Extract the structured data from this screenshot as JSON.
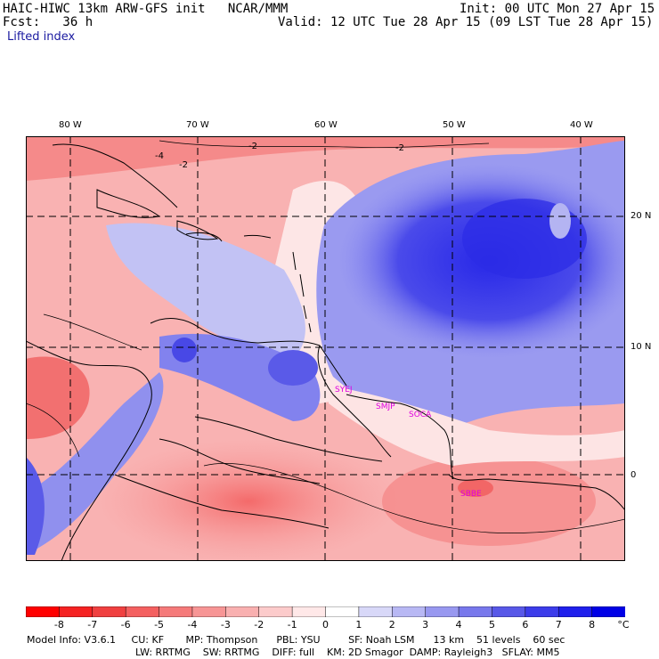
{
  "header": {
    "left1": "HAIC-HIWC 13km ARW-GFS init   NCAR/MMM",
    "right1": "Init: 00 UTC Mon 27 Apr 15",
    "left2": "Fcst:   36 h",
    "right2": "Valid: 12 UTC Tue 28 Apr 15 (09 LST Tue 28 Apr 15)",
    "field": "Lifted index"
  },
  "axes": {
    "lon_labels": [
      "80 W",
      "70 W",
      "60 W",
      "50 W",
      "40 W"
    ],
    "lat_labels": [
      "20 N",
      "10 N",
      "0"
    ]
  },
  "stations": [
    "SYEJ",
    "SMJP",
    "SOCA",
    "SBBE"
  ],
  "contour_labels": [
    "-2",
    "-4",
    "-2",
    "-2"
  ],
  "colorbar": {
    "ticks": [
      "-8",
      "-7",
      "-6",
      "-5",
      "-4",
      "-3",
      "-2",
      "-1",
      "0",
      "1",
      "2",
      "3",
      "4",
      "5",
      "6",
      "7",
      "8"
    ],
    "unit": "°C",
    "colors": [
      "#ff0000",
      "#f52222",
      "#f04040",
      "#f46060",
      "#f57a7a",
      "#f79595",
      "#f9b0b0",
      "#fccbcb",
      "#ffe8e8",
      "#ffffff",
      "#d8d8f8",
      "#b8b8f4",
      "#9898f0",
      "#7878ec",
      "#5858e8",
      "#3c3cea",
      "#2020ec",
      "#0000e6"
    ]
  },
  "model_info": {
    "line1": "Model Info: V3.6.1     CU: KF       MP: Thompson      PBL: YSU         SF: Noah LSM      13 km    51 levels    60 sec",
    "line2": "LW: RRTMG    SW: RRTMG    DIFF: full    KM: 2D Smagor  DAMP: Rayleigh3   SFLAY: MM5"
  }
}
